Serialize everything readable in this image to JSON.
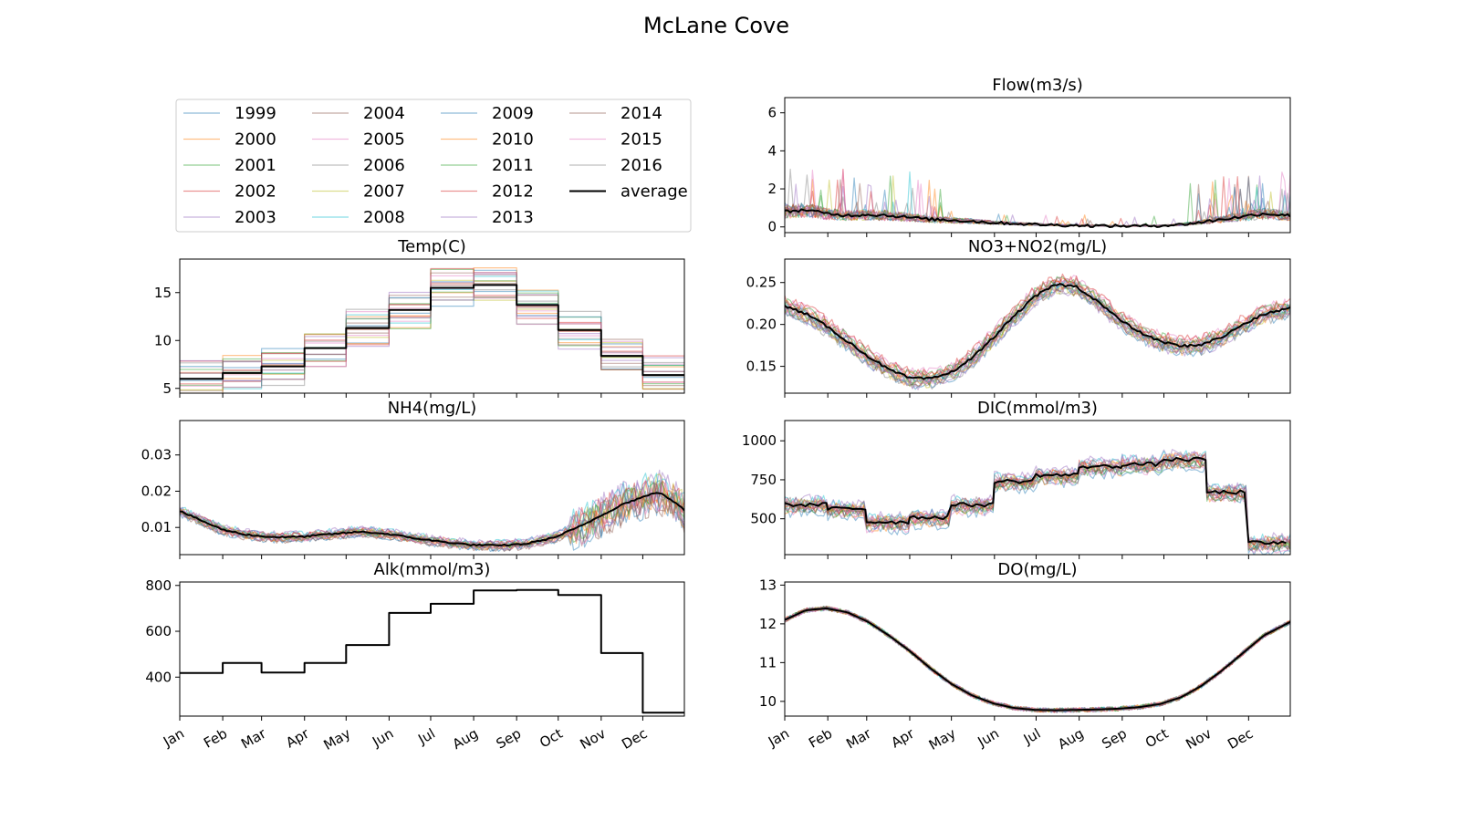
{
  "figure": {
    "title": "McLane Cove"
  },
  "colors": {
    "1999": "#1f77b4",
    "2000": "#ff7f0e",
    "2001": "#2ca02c",
    "2002": "#d62728",
    "2003": "#9467bd",
    "2004": "#8c564b",
    "2005": "#e377c2",
    "2006": "#7f7f7f",
    "2007": "#bcbd22",
    "2008": "#17becf",
    "2009": "#1f77b4",
    "2010": "#ff7f0e",
    "2011": "#2ca02c",
    "2012": "#d62728",
    "2013": "#9467bd",
    "2014": "#8c564b",
    "2015": "#e377c2",
    "2016": "#7f7f7f",
    "average": "#000000"
  },
  "legend": {
    "placement": "upper-left",
    "columns": 4,
    "entries": [
      "1999",
      "2000",
      "2001",
      "2002",
      "2003",
      "2004",
      "2005",
      "2006",
      "2007",
      "2008",
      "2009",
      "2010",
      "2011",
      "2012",
      "2013",
      "2014",
      "2015",
      "2016",
      "average"
    ]
  },
  "chart_data": [
    {
      "id": "flow",
      "type": "line",
      "title": "Flow(m3/s)",
      "ylim": [
        -0.3,
        6.8
      ],
      "yticks": [
        0,
        2,
        4,
        6
      ],
      "ytick_labels": [
        "0",
        "2",
        "4",
        "6"
      ],
      "xticks_shown": false,
      "average": {
        "x_day": [
          0,
          15,
          30,
          45,
          60,
          75,
          90,
          105,
          120,
          135,
          150,
          165,
          180,
          195,
          210,
          225,
          240,
          255,
          270,
          285,
          300,
          315,
          330,
          345,
          364
        ],
        "y": [
          0.8,
          0.9,
          0.7,
          0.6,
          0.65,
          0.6,
          0.5,
          0.4,
          0.35,
          0.3,
          0.22,
          0.18,
          0.13,
          0.1,
          0.08,
          0.06,
          0.05,
          0.05,
          0.07,
          0.12,
          0.25,
          0.4,
          0.55,
          0.7,
          0.6
        ]
      }
    },
    {
      "id": "temp",
      "type": "line",
      "title": "Temp(C)",
      "ylim": [
        4.5,
        18.5
      ],
      "yticks": [
        5,
        10,
        15
      ],
      "ytick_labels": [
        "5",
        "10",
        "15"
      ],
      "xticks_shown": false,
      "step": true,
      "average": {
        "monthly": [
          6.0,
          6.6,
          7.3,
          9.2,
          11.3,
          13.2,
          15.5,
          15.8,
          13.7,
          11.1,
          8.4,
          6.4
        ]
      }
    },
    {
      "id": "nh4",
      "type": "line",
      "title": "NH4(mg/L)",
      "ylim": [
        0.0025,
        0.0395
      ],
      "yticks": [
        0.01,
        0.02,
        0.03
      ],
      "ytick_labels": [
        "0.01",
        "0.02",
        "0.03"
      ],
      "xticks_shown": false,
      "average": {
        "x_day": [
          0,
          15,
          30,
          45,
          60,
          75,
          90,
          110,
          130,
          150,
          170,
          190,
          210,
          230,
          250,
          270,
          290,
          305,
          320,
          335,
          345,
          355,
          364
        ],
        "y": [
          0.0145,
          0.012,
          0.0095,
          0.0082,
          0.0075,
          0.0073,
          0.0075,
          0.0082,
          0.0088,
          0.0082,
          0.007,
          0.006,
          0.0052,
          0.005,
          0.0055,
          0.0072,
          0.0105,
          0.0135,
          0.0165,
          0.0185,
          0.0198,
          0.0175,
          0.0148
        ]
      }
    },
    {
      "id": "alk",
      "type": "line",
      "title": "Alk(mmol/m3)",
      "ylim": [
        230,
        815
      ],
      "yticks": [
        400,
        600,
        800
      ],
      "ytick_labels": [
        "400",
        "600",
        "800"
      ],
      "x_tick_labels": [
        "Jan",
        "Feb",
        "Mar",
        "Apr",
        "May",
        "Jun",
        "Jul",
        "Aug",
        "Sep",
        "Oct",
        "Nov",
        "Dec"
      ],
      "step": true,
      "average": {
        "monthly": [
          418,
          462,
          420,
          462,
          540,
          680,
          720,
          778,
          780,
          758,
          505,
          245
        ]
      }
    },
    {
      "id": "no3",
      "type": "line",
      "title": "NO3+NO2(mg/L)",
      "ylim": [
        0.118,
        0.278
      ],
      "yticks": [
        0.15,
        0.2,
        0.25
      ],
      "ytick_labels": [
        "0.15",
        "0.20",
        "0.25"
      ],
      "xticks_shown": false,
      "average": {
        "x_day": [
          0,
          15,
          30,
          45,
          60,
          75,
          90,
          105,
          120,
          135,
          150,
          165,
          180,
          195,
          210,
          225,
          240,
          255,
          270,
          285,
          300,
          315,
          330,
          345,
          364
        ],
        "y": [
          0.222,
          0.213,
          0.198,
          0.18,
          0.162,
          0.146,
          0.136,
          0.135,
          0.143,
          0.16,
          0.184,
          0.21,
          0.233,
          0.248,
          0.245,
          0.228,
          0.207,
          0.191,
          0.18,
          0.174,
          0.176,
          0.185,
          0.2,
          0.212,
          0.22
        ]
      }
    },
    {
      "id": "dic",
      "type": "line",
      "title": "DIC(mmol/m3)",
      "ylim": [
        270,
        1130
      ],
      "yticks": [
        500,
        750,
        1000
      ],
      "ytick_labels": [
        "500",
        "750",
        "1000"
      ],
      "xticks_shown": false,
      "step": true,
      "average": {
        "monthly": [
          590,
          565,
          480,
          510,
          590,
          740,
          780,
          835,
          850,
          880,
          670,
          345
        ]
      }
    },
    {
      "id": "do",
      "type": "line",
      "title": "DO(mg/L)",
      "ylim": [
        9.62,
        13.08
      ],
      "yticks": [
        10,
        11,
        12,
        13
      ],
      "ytick_labels": [
        "10",
        "11",
        "12",
        "13"
      ],
      "x_tick_labels": [
        "Jan",
        "Feb",
        "Mar",
        "Apr",
        "May",
        "Jun",
        "Jul",
        "Aug",
        "Sep",
        "Oct",
        "Nov",
        "Dec"
      ],
      "average": {
        "x_day": [
          0,
          15,
          30,
          45,
          60,
          75,
          90,
          105,
          120,
          135,
          150,
          165,
          180,
          195,
          210,
          225,
          240,
          255,
          270,
          285,
          300,
          315,
          330,
          345,
          364
        ],
        "y": [
          12.1,
          12.35,
          12.4,
          12.3,
          12.05,
          11.7,
          11.3,
          10.85,
          10.45,
          10.15,
          9.95,
          9.83,
          9.78,
          9.77,
          9.78,
          9.79,
          9.81,
          9.85,
          9.93,
          10.1,
          10.4,
          10.8,
          11.25,
          11.7,
          12.05
        ]
      }
    }
  ]
}
